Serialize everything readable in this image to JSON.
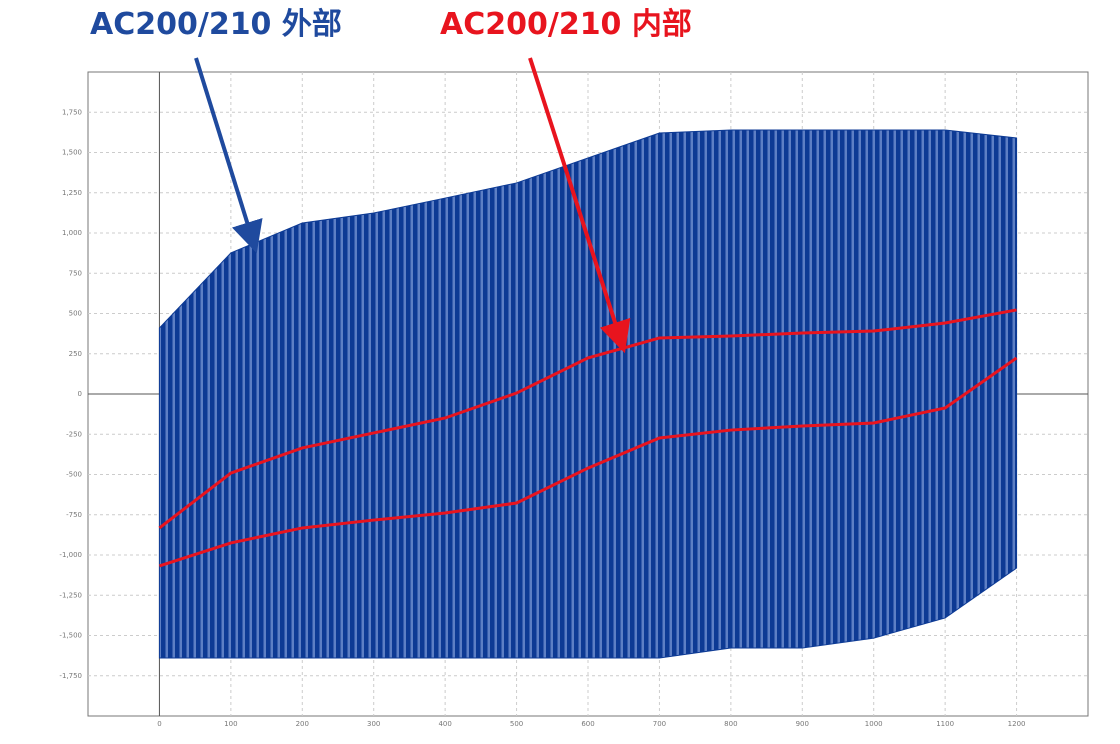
{
  "chart_data": {
    "type": "band",
    "x": [
      0,
      100,
      200,
      300,
      400,
      500,
      600,
      700,
      800,
      900,
      1000,
      1100,
      1200
    ],
    "series": [
      {
        "name": "AC200/210 外部",
        "color": "#0d3a94",
        "upper": [
          410,
          876,
          1062,
          1124,
          1217,
          1311,
          1466,
          1621,
          1640,
          1640,
          1640,
          1640,
          1590
        ],
        "lower": [
          -1640,
          -1640,
          -1640,
          -1640,
          -1640,
          -1640,
          -1640,
          -1640,
          -1578,
          -1578,
          -1516,
          -1391,
          -1081
        ]
      },
      {
        "name": "AC200/210 内部",
        "color": "#e8141e",
        "upper": [
          -832,
          -491,
          -335,
          -242,
          -149,
          6,
          224,
          348,
          360,
          379,
          391,
          441,
          522
        ],
        "lower": [
          -1068,
          -925,
          -832,
          -783,
          -739,
          -677,
          -460,
          -273,
          -224,
          -199,
          -180,
          -87,
          224
        ]
      }
    ],
    "xlim": [
      -100,
      1300
    ],
    "ylim": [
      -2000,
      2000
    ],
    "xticks": [
      0,
      100,
      200,
      300,
      400,
      500,
      600,
      700,
      800,
      900,
      1000,
      1100,
      1200
    ],
    "yticks": [
      {
        "value": -1750,
        "label": "-1,750"
      },
      {
        "value": -1500,
        "label": "-1,500"
      },
      {
        "value": -1250,
        "label": "-1,250"
      },
      {
        "value": -1000,
        "label": "-1,000"
      },
      -750,
      -500,
      -250,
      0,
      250,
      500,
      750,
      {
        "value": 1000,
        "label": "1,000"
      },
      {
        "value": 1250,
        "label": "1,250"
      },
      {
        "value": 1500,
        "label": "1,500"
      },
      {
        "value": 1750,
        "label": "1,750"
      }
    ],
    "grid": true
  }
}
